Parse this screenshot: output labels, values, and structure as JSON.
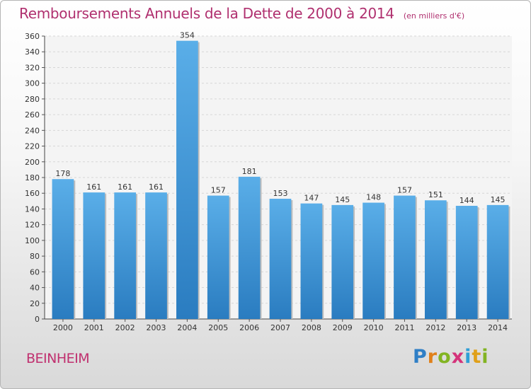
{
  "title": "Remboursements Annuels de la Dette de 2000 à 2014",
  "unit_note": "(en milliers d'€)",
  "place": "BEINHEIM",
  "logo": {
    "letters": [
      "P",
      "r",
      "o",
      "x",
      "i",
      "t",
      "i"
    ]
  },
  "colors": {
    "title": "#b0306f",
    "bar_top": "#5aaee8",
    "bar_bottom": "#2a7cc0",
    "place": "#c0306f"
  },
  "chart_data": {
    "type": "bar",
    "title": "Remboursements Annuels de la Dette de 2000 à 2014",
    "subtitle": "(en milliers d'€)",
    "categories": [
      "2000",
      "2001",
      "2002",
      "2003",
      "2004",
      "2005",
      "2006",
      "2007",
      "2008",
      "2009",
      "2010",
      "2011",
      "2012",
      "2013",
      "2014"
    ],
    "values": [
      178,
      161,
      161,
      161,
      354,
      157,
      181,
      153,
      147,
      145,
      148,
      157,
      151,
      144,
      145
    ],
    "ylim": [
      0,
      360
    ],
    "yticks": [
      0,
      20,
      40,
      60,
      80,
      100,
      120,
      140,
      160,
      180,
      200,
      220,
      240,
      260,
      280,
      300,
      320,
      340,
      360
    ],
    "grid": true,
    "legend": "none"
  }
}
